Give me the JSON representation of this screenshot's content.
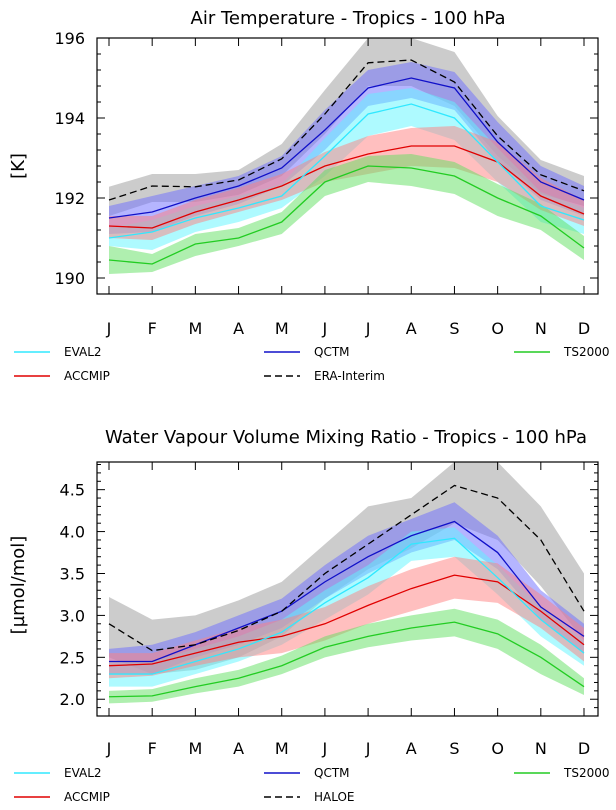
{
  "chart_data": [
    {
      "type": "line",
      "title": "Air Temperature - Tropics - 100 hPa",
      "xlabel": "",
      "ylabel": "[K]",
      "categories": [
        "J",
        "F",
        "M",
        "A",
        "M",
        "J",
        "J",
        "A",
        "S",
        "O",
        "N",
        "D"
      ],
      "ylim": [
        189.6,
        196.0
      ],
      "yticks": [
        "190",
        "192",
        "194",
        "196"
      ],
      "ytick_values": [
        190,
        192,
        194,
        196
      ],
      "series": [
        {
          "name": "ERA-Interim",
          "color": "#000000",
          "dash": true,
          "values": [
            191.95,
            192.3,
            192.28,
            192.45,
            192.98,
            194.1,
            195.38,
            195.45,
            194.9,
            193.55,
            192.58,
            192.18
          ],
          "band_lower": [
            191.55,
            191.9,
            191.9,
            192.08,
            192.55,
            193.6,
            194.8,
            194.8,
            194.3,
            193.05,
            192.1,
            191.8
          ],
          "band_upper": [
            192.28,
            192.6,
            192.6,
            192.7,
            193.35,
            194.7,
            196.0,
            196.0,
            195.65,
            194.05,
            192.95,
            192.55
          ],
          "band_color": "#9a9a9a"
        },
        {
          "name": "QCTM",
          "color": "#1010c8",
          "values": [
            191.5,
            191.65,
            192.0,
            192.3,
            192.75,
            193.7,
            194.75,
            195.0,
            194.75,
            193.4,
            192.4,
            191.95
          ],
          "band_lower": [
            191.1,
            191.15,
            191.55,
            191.85,
            192.3,
            193.2,
            194.3,
            194.5,
            194.2,
            192.9,
            191.95,
            191.55
          ],
          "band_upper": [
            191.8,
            192.05,
            192.3,
            192.55,
            193.05,
            194.2,
            195.2,
            195.4,
            195.15,
            193.9,
            192.8,
            192.3
          ],
          "band_color": "#6b6bff"
        },
        {
          "name": "EVAL2",
          "color": "#30e8ff",
          "values": [
            191.0,
            191.15,
            191.5,
            191.75,
            192.05,
            193.05,
            194.1,
            194.35,
            194.0,
            192.9,
            191.8,
            191.45
          ],
          "band_lower": [
            190.8,
            190.7,
            191.15,
            191.4,
            191.75,
            192.55,
            193.55,
            193.8,
            193.45,
            192.4,
            191.4,
            191.1
          ],
          "band_upper": [
            191.25,
            191.45,
            191.8,
            192.05,
            192.35,
            193.5,
            194.6,
            194.75,
            194.4,
            193.25,
            192.15,
            191.75
          ],
          "band_color": "#5ef5ff"
        },
        {
          "name": "ACCMIP",
          "color": "#e00000",
          "values": [
            191.3,
            191.25,
            191.65,
            191.95,
            192.3,
            192.8,
            193.1,
            193.3,
            193.3,
            192.9,
            192.05,
            191.6
          ],
          "band_lower": [
            191.0,
            190.95,
            191.35,
            191.65,
            191.95,
            192.4,
            192.6,
            192.8,
            192.75,
            192.4,
            191.7,
            191.3
          ],
          "band_upper": [
            191.55,
            191.55,
            191.95,
            192.25,
            192.6,
            193.15,
            193.55,
            193.75,
            193.8,
            193.4,
            192.5,
            191.95
          ],
          "band_color": "#ff7f7f"
        },
        {
          "name": "TS2000",
          "color": "#22cc22",
          "values": [
            190.45,
            190.35,
            190.85,
            191.0,
            191.4,
            192.4,
            192.8,
            192.75,
            192.55,
            192.0,
            191.55,
            190.75
          ],
          "band_lower": [
            190.1,
            190.15,
            190.55,
            190.8,
            191.1,
            192.05,
            192.4,
            192.3,
            192.1,
            191.55,
            191.2,
            190.45
          ],
          "band_upper": [
            190.8,
            190.6,
            191.1,
            191.25,
            191.65,
            192.7,
            193.05,
            193.1,
            192.9,
            192.35,
            191.85,
            191.05
          ],
          "band_color": "#5fe05f"
        }
      ],
      "legend": [
        "EVAL2",
        "QCTM",
        "TS2000",
        "ACCMIP",
        "ERA-Interim"
      ]
    },
    {
      "type": "line",
      "title": "Water Vapour Volume Mixing Ratio - Tropics - 100 hPa",
      "xlabel": "",
      "ylabel": "[µmol/mol]",
      "categories": [
        "J",
        "F",
        "M",
        "A",
        "M",
        "J",
        "J",
        "A",
        "S",
        "O",
        "N",
        "D"
      ],
      "ylim": [
        1.8,
        4.83
      ],
      "yticks": [
        "2.0",
        "2.5",
        "3.0",
        "3.5",
        "4.0",
        "4.5"
      ],
      "ytick_values": [
        2.0,
        2.5,
        3.0,
        3.5,
        4.0,
        4.5
      ],
      "series": [
        {
          "name": "HALOE",
          "color": "#000000",
          "dash": true,
          "values": [
            2.9,
            2.58,
            2.65,
            2.82,
            3.05,
            3.5,
            3.85,
            4.2,
            4.55,
            4.4,
            3.9,
            3.05
          ],
          "band_lower": [
            2.5,
            2.3,
            2.35,
            2.5,
            2.75,
            3.2,
            3.55,
            3.8,
            4.1,
            3.9,
            3.35,
            2.7
          ],
          "band_upper": [
            3.22,
            2.95,
            3.0,
            3.18,
            3.4,
            3.85,
            4.3,
            4.4,
            4.83,
            4.83,
            4.3,
            3.5
          ],
          "band_color": "#9a9a9a"
        },
        {
          "name": "QCTM",
          "color": "#1010c8",
          "values": [
            2.45,
            2.45,
            2.65,
            2.85,
            3.05,
            3.4,
            3.7,
            3.95,
            4.12,
            3.75,
            3.1,
            2.75
          ],
          "band_lower": [
            2.3,
            2.3,
            2.5,
            2.65,
            2.85,
            3.2,
            3.5,
            3.75,
            3.9,
            3.55,
            2.95,
            2.55
          ],
          "band_upper": [
            2.6,
            2.65,
            2.8,
            3.0,
            3.2,
            3.6,
            3.95,
            4.15,
            4.35,
            3.95,
            3.3,
            2.9
          ],
          "band_color": "#6b6bff"
        },
        {
          "name": "EVAL2",
          "color": "#30e8ff",
          "values": [
            2.3,
            2.3,
            2.45,
            2.6,
            2.8,
            3.15,
            3.45,
            3.85,
            3.92,
            3.45,
            2.95,
            2.55
          ],
          "band_lower": [
            2.15,
            2.15,
            2.3,
            2.45,
            2.65,
            2.95,
            3.25,
            3.65,
            3.7,
            3.25,
            2.75,
            2.4
          ],
          "band_upper": [
            2.45,
            2.45,
            2.6,
            2.75,
            2.95,
            3.3,
            3.6,
            4.0,
            4.05,
            3.6,
            3.1,
            2.7
          ],
          "band_color": "#5ef5ff"
        },
        {
          "name": "ACCMIP",
          "color": "#e00000",
          "values": [
            2.4,
            2.42,
            2.55,
            2.68,
            2.75,
            2.9,
            3.12,
            3.32,
            3.48,
            3.4,
            3.05,
            2.65
          ],
          "band_lower": [
            2.25,
            2.28,
            2.4,
            2.5,
            2.55,
            2.7,
            2.9,
            3.05,
            3.2,
            3.15,
            2.85,
            2.45
          ],
          "band_upper": [
            2.55,
            2.55,
            2.7,
            2.85,
            2.95,
            3.1,
            3.35,
            3.55,
            3.7,
            3.62,
            3.25,
            2.85
          ],
          "band_color": "#ff7f7f"
        },
        {
          "name": "TS2000",
          "color": "#22cc22",
          "values": [
            2.03,
            2.04,
            2.15,
            2.25,
            2.4,
            2.62,
            2.75,
            2.85,
            2.92,
            2.78,
            2.5,
            2.15
          ],
          "band_lower": [
            1.95,
            1.97,
            2.07,
            2.15,
            2.3,
            2.5,
            2.62,
            2.7,
            2.75,
            2.6,
            2.3,
            2.05
          ],
          "band_upper": [
            2.1,
            2.12,
            2.25,
            2.35,
            2.52,
            2.75,
            2.9,
            3.0,
            3.08,
            2.95,
            2.65,
            2.25
          ],
          "band_color": "#5fe05f"
        }
      ],
      "legend": [
        "EVAL2",
        "QCTM",
        "TS2000",
        "ACCMIP",
        "HALOE"
      ]
    }
  ]
}
